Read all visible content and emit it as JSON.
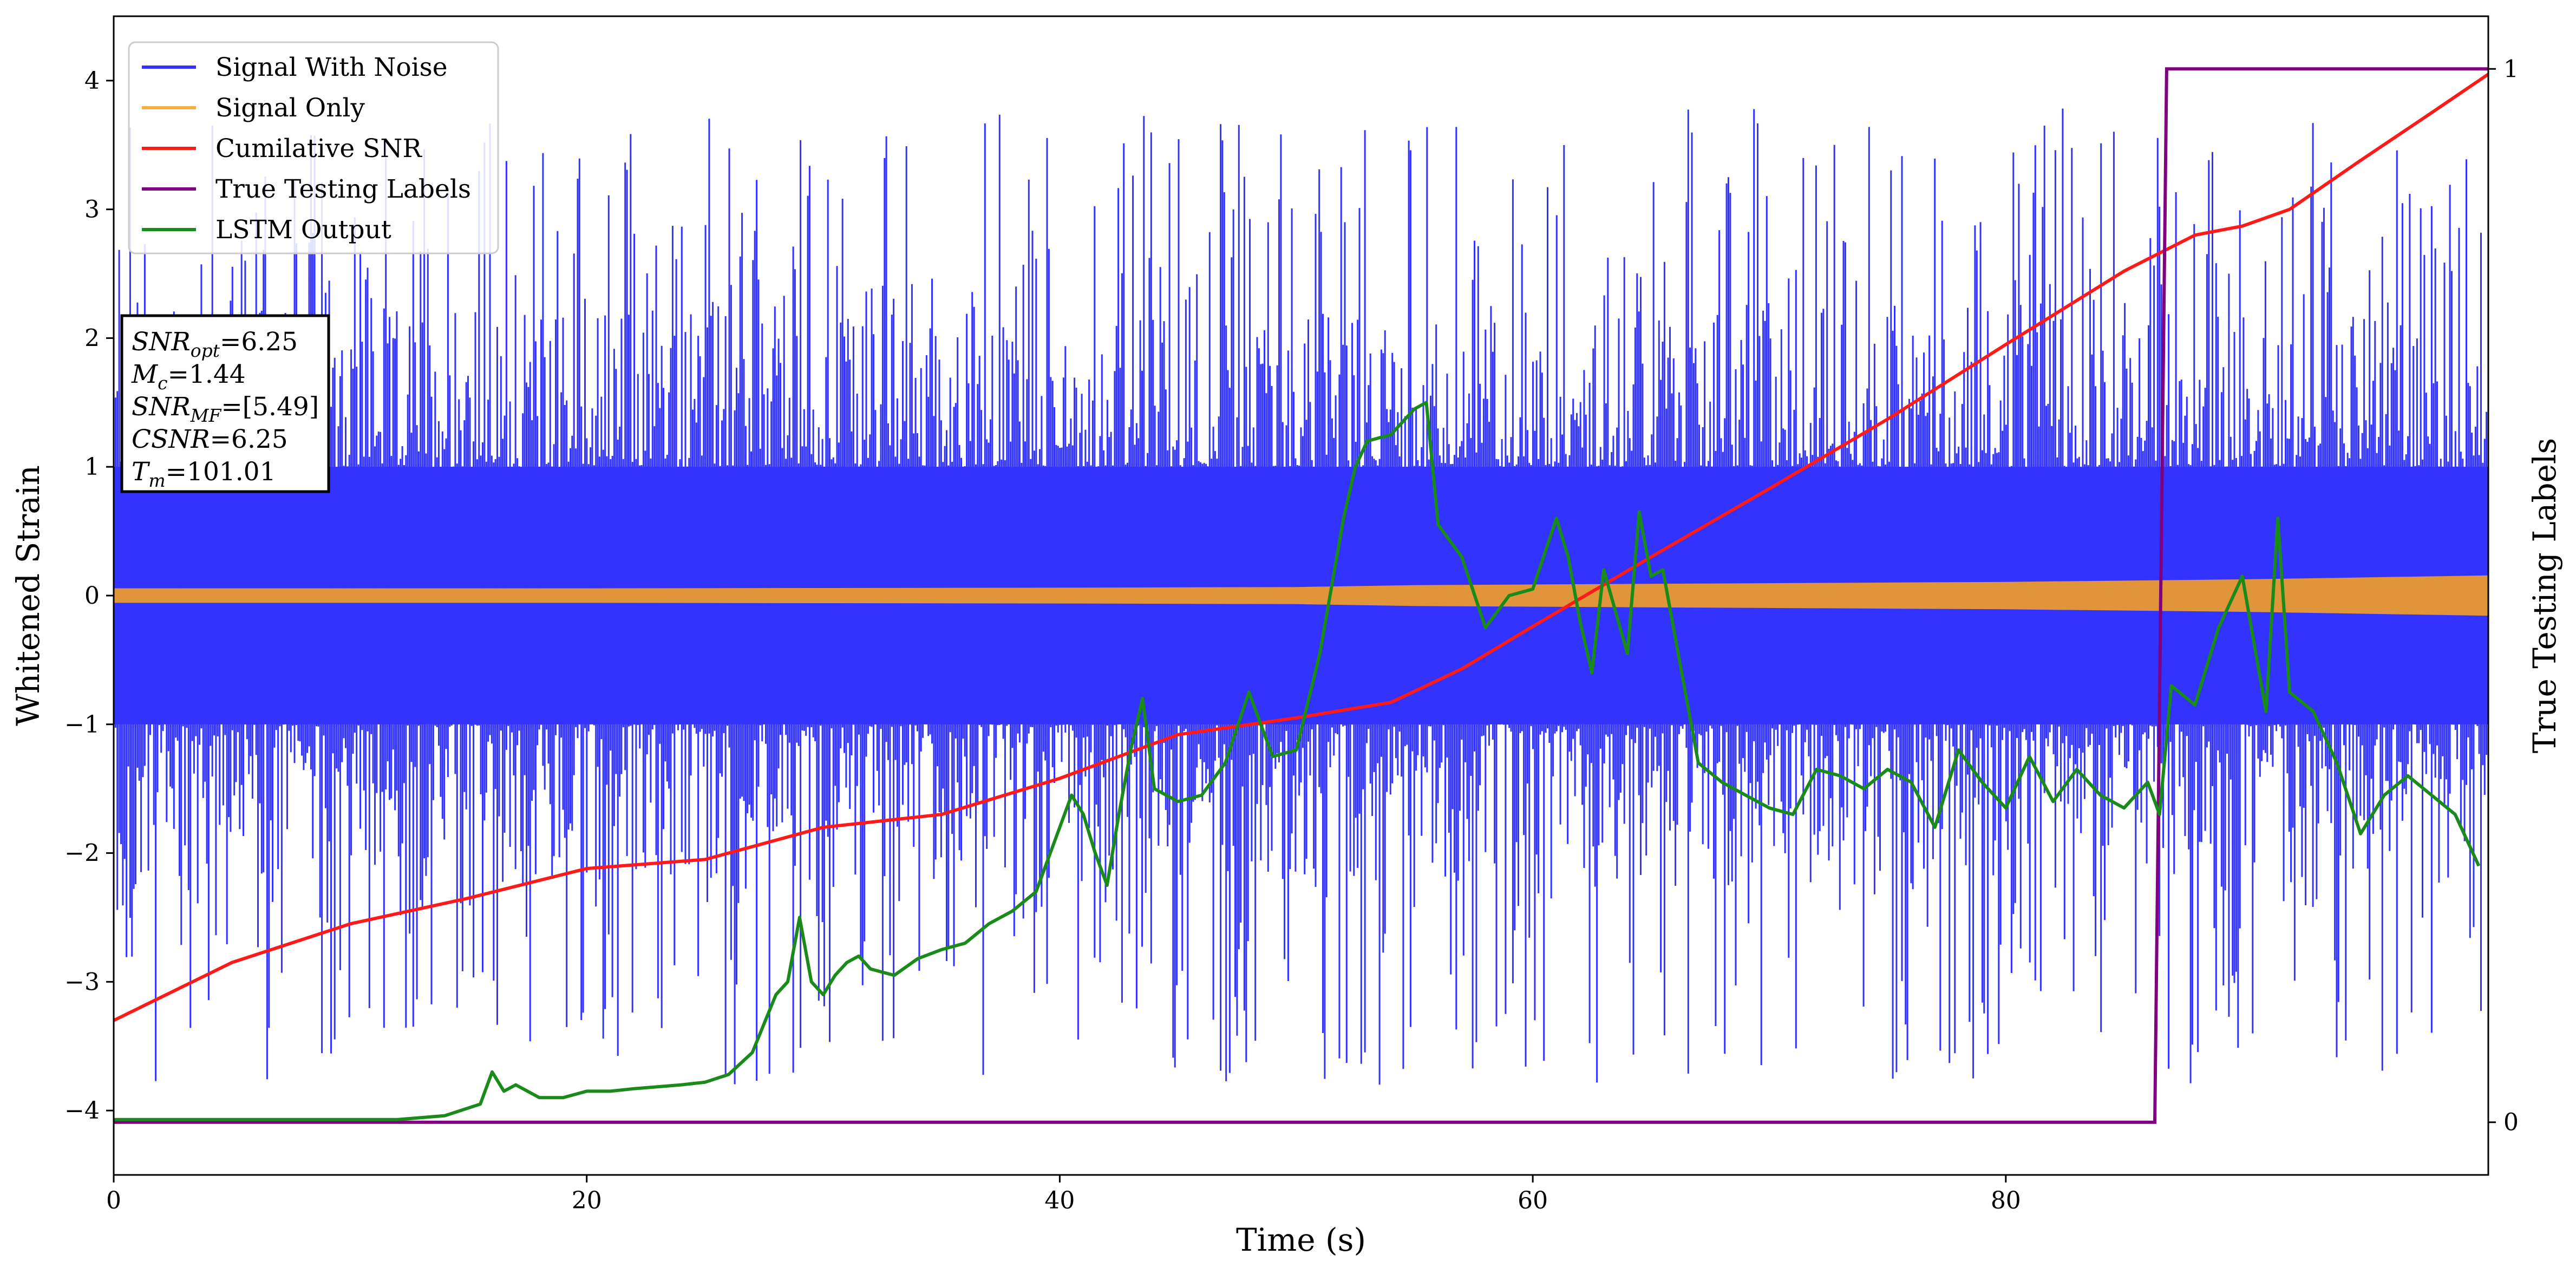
{
  "chart_data": {
    "type": "line",
    "xlabel": "Time (s)",
    "ylabel": "Whitened Strain",
    "y2label": "True Testing Labels",
    "xlim": [
      0,
      100.4
    ],
    "ylim": [
      -4.5,
      4.5
    ],
    "y2lim": [
      -0.05,
      1.05
    ],
    "x_ticks": [
      0,
      20,
      40,
      60,
      80
    ],
    "y_ticks": [
      -4,
      -3,
      -2,
      -1,
      0,
      1,
      2,
      3,
      4
    ],
    "y2_ticks": [
      0,
      1
    ],
    "legend_position": "upper-left",
    "legend": [
      {
        "name": "Signal With Noise",
        "color": "#3333ff"
      },
      {
        "name": "Signal Only",
        "color": "#f5b041"
      },
      {
        "name": "Cumilative SNR",
        "color": "#ff1a1a"
      },
      {
        "name": "True Testing Labels",
        "color": "#800080"
      },
      {
        "name": "LSTM Output",
        "color": "#1a8a1a"
      }
    ],
    "info_box": [
      {
        "base": "SNR",
        "sub": "opt",
        "value": "=6.25"
      },
      {
        "base": "M",
        "sub": "c",
        "value": "=1.44"
      },
      {
        "base": "SNR",
        "sub": "MF",
        "value": "=[5.49]"
      },
      {
        "base": "CSNR",
        "sub": "",
        "value": "=6.25"
      },
      {
        "base": "T",
        "sub": "m",
        "value": "=101.01"
      }
    ],
    "series": [
      {
        "name": "Signal With Noise",
        "axis": "left",
        "style": "noise_band",
        "duration": 100.4,
        "core_envelope": [
          1.0,
          1.0
        ],
        "spike_range": [
          1.6,
          3.8
        ],
        "color": "#3333ff"
      },
      {
        "name": "Signal Only",
        "axis": "left",
        "style": "band",
        "x": [
          0,
          20,
          40,
          50,
          55,
          60,
          70,
          80,
          90,
          100.4
        ],
        "amplitude": [
          0.05,
          0.05,
          0.055,
          0.06,
          0.075,
          0.08,
          0.09,
          0.1,
          0.12,
          0.15
        ],
        "color": "#e0953a"
      },
      {
        "name": "Cumilative SNR",
        "axis": "left",
        "x": [
          0,
          5,
          10,
          15,
          20,
          25,
          30,
          35,
          40,
          45,
          50,
          54,
          57,
          60,
          65,
          70,
          75,
          80,
          85,
          88,
          90,
          92,
          95,
          98,
          100.4
        ],
        "y": [
          -3.3,
          -2.85,
          -2.55,
          -2.35,
          -2.12,
          -2.05,
          -1.8,
          -1.7,
          -1.42,
          -1.08,
          -0.95,
          -0.83,
          -0.57,
          -0.24,
          0.3,
          0.83,
          1.37,
          1.95,
          2.52,
          2.8,
          2.87,
          3.0,
          3.38,
          3.75,
          4.05
        ],
        "color": "#ff1a1a"
      },
      {
        "name": "True Testing Labels",
        "axis": "right",
        "x": [
          0,
          86.3,
          86.8,
          100.4
        ],
        "y": [
          0,
          0,
          1,
          1
        ],
        "color": "#800080"
      },
      {
        "name": "LSTM Output",
        "axis": "left",
        "x": [
          0,
          12,
          14,
          15.5,
          16,
          16.5,
          17,
          18,
          19,
          20,
          21,
          22,
          24,
          25,
          26,
          27,
          28,
          28.5,
          29,
          29.5,
          30,
          30.5,
          31,
          31.5,
          32,
          33,
          34,
          35,
          36,
          37,
          38,
          39,
          40,
          40.5,
          41,
          41.5,
          42,
          42.5,
          43,
          43.5,
          44,
          45,
          46,
          47,
          48,
          49,
          50,
          51,
          52,
          52.5,
          53,
          54,
          55,
          55.5,
          56,
          57,
          58,
          59,
          60,
          61,
          61.5,
          62,
          62.5,
          63,
          64,
          64.5,
          65,
          65.5,
          66,
          67,
          68,
          69,
          70,
          71,
          72,
          73,
          74,
          75,
          76,
          77,
          78,
          79,
          80,
          81,
          82,
          83,
          84,
          85,
          86,
          86.5,
          87,
          88,
          89,
          90,
          91,
          91.5,
          92,
          93,
          94,
          95,
          96,
          97,
          98,
          99,
          100
        ],
        "y": [
          -4.07,
          -4.07,
          -4.04,
          -3.95,
          -3.7,
          -3.85,
          -3.8,
          -3.9,
          -3.9,
          -3.85,
          -3.85,
          -3.83,
          -3.8,
          -3.78,
          -3.72,
          -3.55,
          -3.1,
          -3.0,
          -2.5,
          -3.0,
          -3.1,
          -2.95,
          -2.85,
          -2.8,
          -2.9,
          -2.95,
          -2.82,
          -2.75,
          -2.7,
          -2.55,
          -2.45,
          -2.3,
          -1.8,
          -1.55,
          -1.7,
          -2.0,
          -2.25,
          -1.7,
          -1.2,
          -0.8,
          -1.5,
          -1.6,
          -1.55,
          -1.3,
          -0.75,
          -1.25,
          -1.2,
          -0.45,
          0.6,
          1.0,
          1.2,
          1.25,
          1.45,
          1.5,
          0.55,
          0.3,
          -0.25,
          0.0,
          0.05,
          0.6,
          0.3,
          -0.2,
          -0.6,
          0.2,
          -0.45,
          0.65,
          0.15,
          0.2,
          -0.3,
          -1.3,
          -1.45,
          -1.55,
          -1.65,
          -1.7,
          -1.35,
          -1.4,
          -1.5,
          -1.35,
          -1.45,
          -1.8,
          -1.2,
          -1.45,
          -1.65,
          -1.25,
          -1.6,
          -1.35,
          -1.55,
          -1.65,
          -1.45,
          -1.7,
          -0.7,
          -0.85,
          -0.25,
          0.15,
          -0.9,
          0.6,
          -0.75,
          -0.9,
          -1.3,
          -1.85,
          -1.55,
          -1.4,
          -1.55,
          -1.7,
          -2.1
        ],
        "color": "#1a8a1a"
      }
    ]
  }
}
